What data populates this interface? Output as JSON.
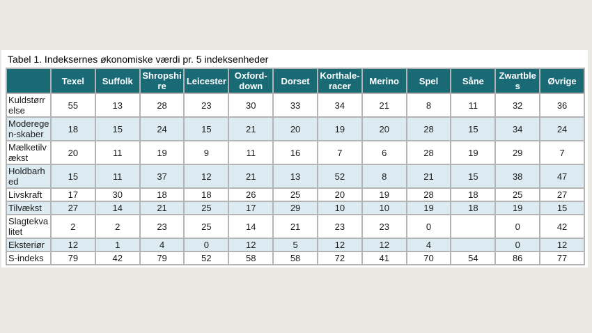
{
  "title": "Tabel 1. Indeksernes økonomiske værdi pr. 5 indeksenheder",
  "colors": {
    "page_bg": "#e9e8e3",
    "panel_bg": "#ffffff",
    "header_bg": "#196a75",
    "header_text": "#ffffff",
    "alt_row_bg": "#dcebf1",
    "grid": "#b4b4b4"
  },
  "table": {
    "columns": [
      "Texel",
      "Suffolk",
      "Shropshire",
      "Leicester",
      "Oxford-down",
      "Dorset",
      "Korthale-racer",
      "Merino",
      "Spel",
      "Såne",
      "Zwartbles",
      "Øvrige"
    ],
    "rows": [
      {
        "label": "Kuldstørrelse",
        "values": [
          "55",
          "13",
          "28",
          "23",
          "30",
          "33",
          "34",
          "21",
          "8",
          "11",
          "32",
          "36"
        ]
      },
      {
        "label": "Moderegen-skaber",
        "values": [
          "18",
          "15",
          "24",
          "15",
          "21",
          "20",
          "19",
          "20",
          "28",
          "15",
          "34",
          "24"
        ]
      },
      {
        "label": "Mælketilvækst",
        "values": [
          "20",
          "11",
          "19",
          "9",
          "11",
          "16",
          "7",
          "6",
          "28",
          "19",
          "29",
          "7"
        ]
      },
      {
        "label": "Holdbarhed",
        "values": [
          "15",
          "11",
          "37",
          "12",
          "21",
          "13",
          "52",
          "8",
          "21",
          "15",
          "38",
          "47"
        ]
      },
      {
        "label": "Livskraft",
        "values": [
          "17",
          "30",
          "18",
          "18",
          "26",
          "25",
          "20",
          "19",
          "28",
          "18",
          "25",
          "27"
        ]
      },
      {
        "label": "Tilvækst",
        "values": [
          "27",
          "14",
          "21",
          "25",
          "17",
          "29",
          "10",
          "10",
          "19",
          "18",
          "19",
          "15"
        ]
      },
      {
        "label": "Slagtekvalitet",
        "values": [
          "2",
          "2",
          "23",
          "25",
          "14",
          "21",
          "23",
          "23",
          "0",
          "",
          "0",
          "42"
        ]
      },
      {
        "label": "Eksteriør",
        "values": [
          "12",
          "1",
          "4",
          "0",
          "12",
          "5",
          "12",
          "12",
          "4",
          "",
          "0",
          "12"
        ]
      },
      {
        "label": "S-indeks",
        "values": [
          "79",
          "42",
          "79",
          "52",
          "58",
          "58",
          "72",
          "41",
          "70",
          "54",
          "86",
          "77"
        ]
      }
    ]
  }
}
